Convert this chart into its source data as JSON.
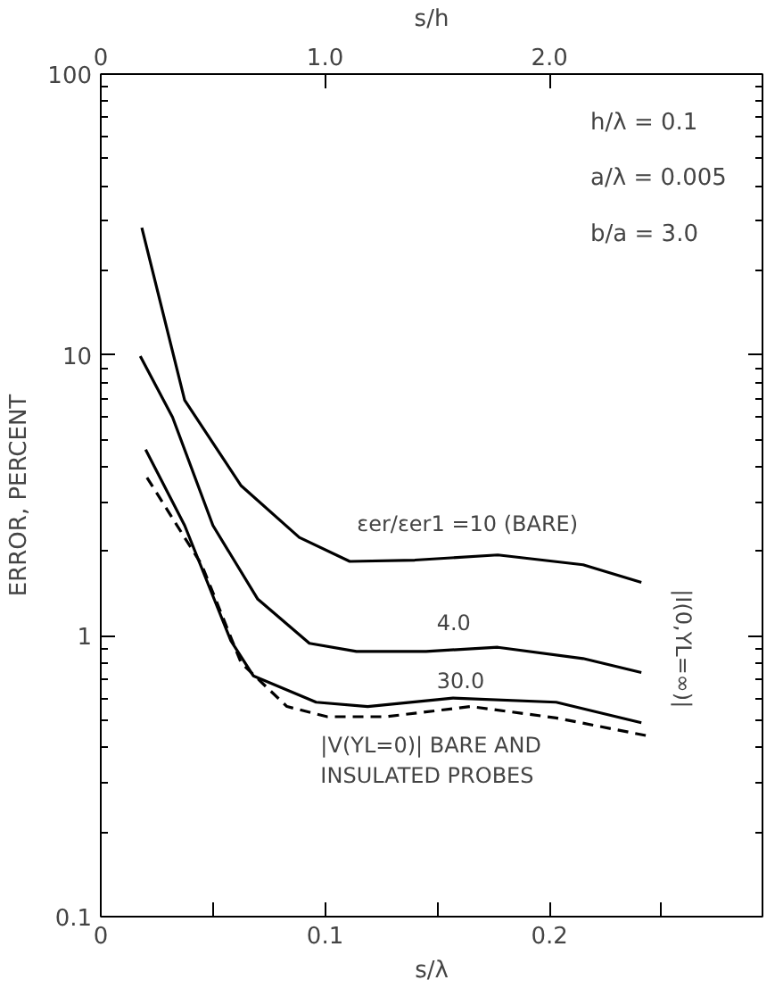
{
  "chart_data": {
    "type": "line",
    "xlabel": "s/λ",
    "ylabel": "ERROR, PERCENT",
    "x2label": "s/h",
    "log": "y",
    "xlim": [
      0,
      0.295
    ],
    "ylim": [
      0.1,
      100
    ],
    "xticks": [
      0,
      {
        "value": 0.05,
        "label": null
      },
      0.1,
      {
        "value": 0.15,
        "label": null
      },
      0.2,
      {
        "value": 0.25,
        "label": null
      }
    ],
    "yticks": [
      0.1,
      1,
      10,
      100
    ],
    "x2lim": [
      0,
      2.95
    ],
    "x2ticks": [
      0,
      {
        "value": 1,
        "label": "1.0"
      },
      {
        "value": 2,
        "label": "2.0"
      }
    ],
    "grid": false,
    "marker": "none",
    "series": [
      {
        "color": "#000000",
        "line_style": "solid",
        "x": [
          0.0183,
          0.0374,
          0.0626,
          0.0885,
          0.111,
          0.14,
          0.177,
          0.215,
          0.241
        ],
        "values": [
          28.4,
          6.9,
          3.42,
          2.24,
          1.84,
          1.86,
          1.94,
          1.79,
          1.55
        ]
      },
      {
        "color": "#000000",
        "line_style": "solid",
        "x": [
          0.0176,
          0.032,
          0.05,
          0.07,
          0.093,
          0.114,
          0.145,
          0.177,
          0.215,
          0.241
        ],
        "values": [
          9.9,
          6.0,
          2.47,
          1.35,
          0.94,
          0.88,
          0.88,
          0.91,
          0.83,
          0.74
        ]
      },
      {
        "color": "#000000",
        "line_style": "solid",
        "x": [
          0.02,
          0.0374,
          0.058,
          0.068,
          0.096,
          0.119,
          0.157,
          0.203,
          0.241
        ],
        "values": [
          4.6,
          2.47,
          0.96,
          0.72,
          0.58,
          0.56,
          0.6,
          0.58,
          0.49
        ]
      },
      {
        "color": "#000000",
        "line_style": "dashed",
        "x": [
          0.0206,
          0.045,
          0.0626,
          0.083,
          0.101,
          0.127,
          0.165,
          0.203,
          0.244
        ],
        "values": [
          3.66,
          1.79,
          0.8,
          0.56,
          0.515,
          0.515,
          0.56,
          0.51,
          0.44
        ]
      }
    ],
    "annotations": [
      "h/λ = 0.1",
      "a/λ = 0.005",
      "b/a = 3.0",
      {
        "text": "εer/εer1 =10 (BARE)",
        "x": 0.111,
        "y": 1.84
      },
      {
        "text": "4.0",
        "x": 0.145,
        "y": 0.88
      },
      {
        "text": "30.0",
        "x": 0.145,
        "y": 0.58
      },
      {
        "text": "|V(YL=0)| BARE AND INSULATED PROBES",
        "x": 0.09,
        "y": 0.515
      },
      "|I(0,YL=∞)|"
    ]
  }
}
